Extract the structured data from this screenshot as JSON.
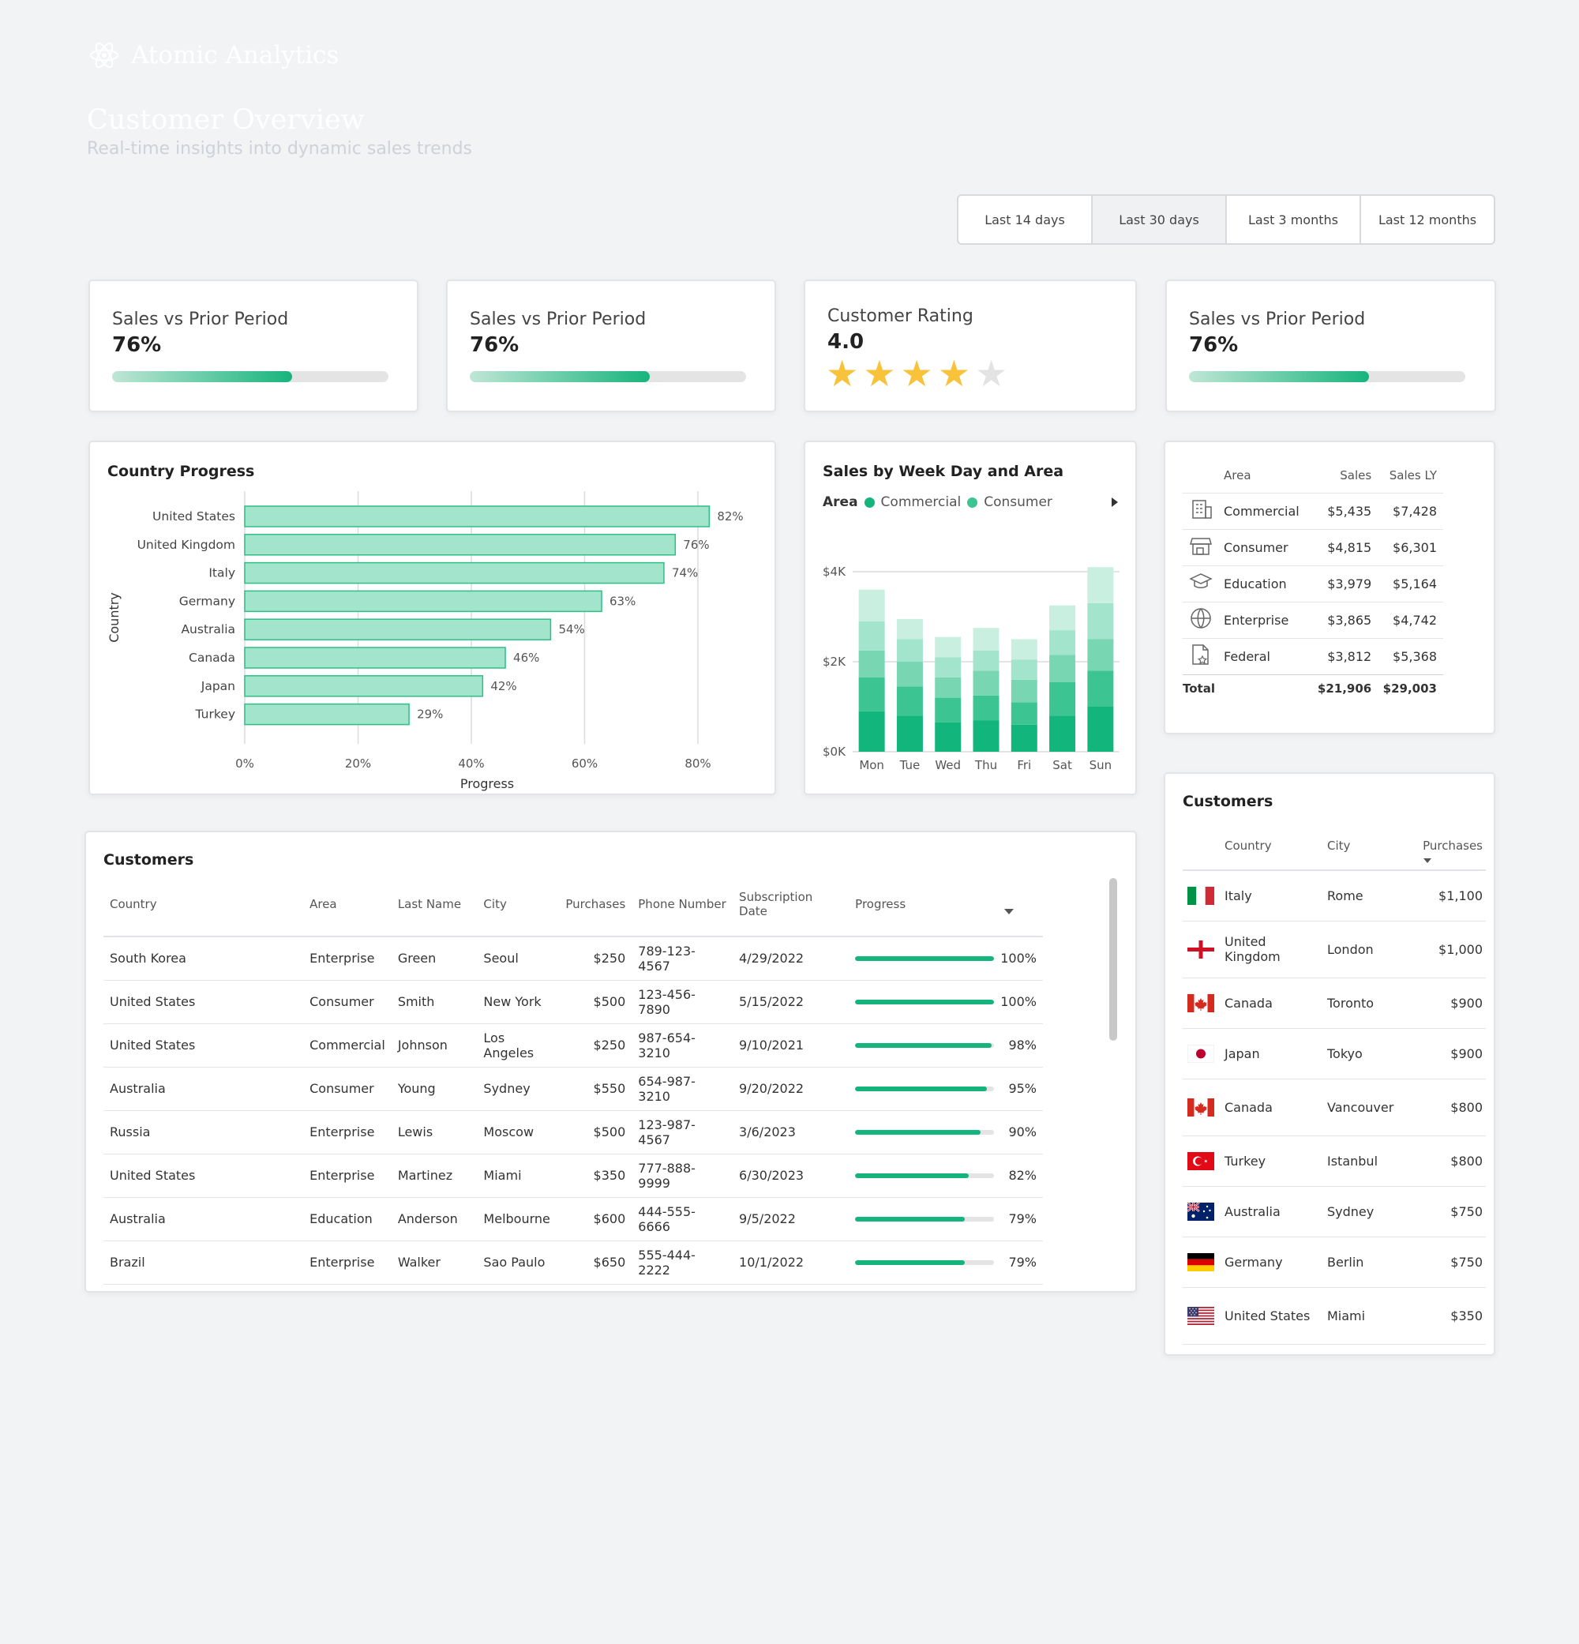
{
  "brand": {
    "name": "Atomic Analytics"
  },
  "header": {
    "title": "Customer Overview",
    "subtitle": "Real-time insights into dynamic sales trends"
  },
  "periods": [
    {
      "label": "Last 14 days",
      "active": false
    },
    {
      "label": "Last 30 days",
      "active": true
    },
    {
      "label": "Last 3 months",
      "active": false
    },
    {
      "label": "Last 12 months",
      "active": false
    }
  ],
  "kpis": [
    {
      "title": "Sales vs Prior Period",
      "value": "76%",
      "progress": 0.65
    },
    {
      "title": "Sales vs Prior Period",
      "value": "76%",
      "progress": 0.65
    },
    {
      "title": "Customer Rating",
      "value": "4.0",
      "stars": 4,
      "max_stars": 5
    },
    {
      "title": "Sales vs Prior Period",
      "value": "76%",
      "progress": 0.65
    }
  ],
  "colors": {
    "accent": "#16b47d",
    "bar_fill": "#a3e4cc",
    "bar_stroke": "#2fbf86",
    "star": "#f8c33a",
    "star_off": "#e3e3e3"
  },
  "country_chart": {
    "title": "Country Progress",
    "chart_data": {
      "type": "bar",
      "orientation": "horizontal",
      "categories": [
        "United States",
        "United Kingdom",
        "Italy",
        "Germany",
        "Australia",
        "Canada",
        "Japan",
        "Turkey"
      ],
      "values": [
        82,
        76,
        74,
        63,
        54,
        46,
        42,
        29
      ],
      "value_labels": [
        "82%",
        "76%",
        "74%",
        "63%",
        "54%",
        "46%",
        "42%",
        "29%"
      ],
      "xlabel": "Progress",
      "ylabel": "Country",
      "xlim": [
        0,
        80
      ],
      "xticks": [
        "0%",
        "20%",
        "40%",
        "60%",
        "80%"
      ],
      "grid": true
    }
  },
  "weekday_chart": {
    "title": "Sales by Week Day and Area",
    "legend_title": "Area",
    "legend": [
      "Commercial",
      "Consumer"
    ],
    "chart_data": {
      "type": "bar",
      "stacked": true,
      "categories": [
        "Mon",
        "Tue",
        "Wed",
        "Thu",
        "Fri",
        "Sat",
        "Sun"
      ],
      "series": [
        {
          "name": "Commercial",
          "values": [
            900,
            800,
            650,
            700,
            600,
            800,
            1000
          ]
        },
        {
          "name": "Consumer",
          "values": [
            750,
            650,
            550,
            550,
            500,
            750,
            800
          ]
        },
        {
          "values": [
            600,
            550,
            450,
            550,
            500,
            600,
            700
          ]
        },
        {
          "values": [
            650,
            500,
            450,
            450,
            450,
            550,
            800
          ]
        },
        {
          "values": [
            700,
            450,
            450,
            500,
            450,
            550,
            800
          ]
        }
      ],
      "ylim": [
        0,
        4000
      ],
      "yticks": [
        "$0K",
        "$2K",
        "$4K"
      ],
      "colors": [
        "#12b57b",
        "#3cc492",
        "#78d6b3",
        "#a3e4cc",
        "#c8efe0"
      ],
      "grid": true
    }
  },
  "area_table": {
    "headers": [
      "Area",
      "Sales",
      "Sales LY"
    ],
    "rows": [
      {
        "icon": "building-icon",
        "area": "Commercial",
        "sales": "$5,435",
        "sales_ly": "$7,428"
      },
      {
        "icon": "store-icon",
        "area": "Consumer",
        "sales": "$4,815",
        "sales_ly": "$6,301"
      },
      {
        "icon": "graduation-cap-icon",
        "area": "Education",
        "sales": "$3,979",
        "sales_ly": "$5,164"
      },
      {
        "icon": "globe-icon",
        "area": "Enterprise",
        "sales": "$3,865",
        "sales_ly": "$4,742"
      },
      {
        "icon": "document-star-icon",
        "area": "Federal",
        "sales": "$3,812",
        "sales_ly": "$5,368"
      }
    ],
    "total": {
      "label": "Total",
      "sales": "$21,906",
      "sales_ly": "$29,003"
    }
  },
  "customers_main": {
    "title": "Customers",
    "headers": [
      "Country",
      "Area",
      "Last Name",
      "City",
      "Purchases",
      "Phone Number",
      "Subscription Date",
      "Progress"
    ],
    "rows": [
      {
        "country": "South Korea",
        "area": "Enterprise",
        "last_name": "Green",
        "city": "Seoul",
        "purchases": "$250",
        "phone": "789-123-4567",
        "date": "4/29/2022",
        "progress": 100,
        "progress_label": "100%"
      },
      {
        "country": "United States",
        "area": "Consumer",
        "last_name": "Smith",
        "city": "New York",
        "purchases": "$500",
        "phone": "123-456-7890",
        "date": "5/15/2022",
        "progress": 100,
        "progress_label": "100%"
      },
      {
        "country": "United States",
        "area": "Commercial",
        "last_name": "Johnson",
        "city": "Los Angeles",
        "purchases": "$250",
        "phone": "987-654-3210",
        "date": "9/10/2021",
        "progress": 98,
        "progress_label": "98%"
      },
      {
        "country": "Australia",
        "area": "Consumer",
        "last_name": "Young",
        "city": "Sydney",
        "purchases": "$550",
        "phone": "654-987-3210",
        "date": "9/20/2022",
        "progress": 95,
        "progress_label": "95%"
      },
      {
        "country": "Russia",
        "area": "Enterprise",
        "last_name": "Lewis",
        "city": "Moscow",
        "purchases": "$500",
        "phone": "123-987-4567",
        "date": "3/6/2023",
        "progress": 90,
        "progress_label": "90%"
      },
      {
        "country": "United States",
        "area": "Enterprise",
        "last_name": "Martinez",
        "city": "Miami",
        "purchases": "$350",
        "phone": "777-888-9999",
        "date": "6/30/2023",
        "progress": 82,
        "progress_label": "82%"
      },
      {
        "country": "Australia",
        "area": "Education",
        "last_name": "Anderson",
        "city": "Melbourne",
        "purchases": "$600",
        "phone": "444-555-6666",
        "date": "9/5/2022",
        "progress": 79,
        "progress_label": "79%"
      },
      {
        "country": "Brazil",
        "area": "Enterprise",
        "last_name": "Walker",
        "city": "Sao Paulo",
        "purchases": "$650",
        "phone": "555-444-2222",
        "date": "10/1/2022",
        "progress": 79,
        "progress_label": "79%"
      }
    ]
  },
  "customers_side": {
    "title": "Customers",
    "headers": [
      "Country",
      "City",
      "Purchases"
    ],
    "rows": [
      {
        "flag": "italy-flag-icon",
        "country": "Italy",
        "city": "Rome",
        "purchases": "$1,100"
      },
      {
        "flag": "uk-flag-icon",
        "country": "United Kingdom",
        "city": "London",
        "purchases": "$1,000"
      },
      {
        "flag": "canada-flag-icon",
        "country": "Canada",
        "city": "Toronto",
        "purchases": "$900"
      },
      {
        "flag": "japan-flag-icon",
        "country": "Japan",
        "city": "Tokyo",
        "purchases": "$900"
      },
      {
        "flag": "canada-flag-icon",
        "country": "Canada",
        "city": "Vancouver",
        "purchases": "$800"
      },
      {
        "flag": "turkey-flag-icon",
        "country": "Turkey",
        "city": "Istanbul",
        "purchases": "$800"
      },
      {
        "flag": "australia-flag-icon",
        "country": "Australia",
        "city": "Sydney",
        "purchases": "$750"
      },
      {
        "flag": "germany-flag-icon",
        "country": "Germany",
        "city": "Berlin",
        "purchases": "$750"
      },
      {
        "flag": "usa-flag-icon",
        "country": "United States",
        "city": "Miami",
        "purchases": "$350"
      }
    ]
  }
}
